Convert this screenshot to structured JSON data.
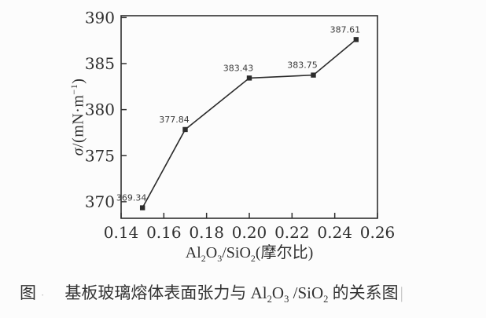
{
  "colors": {
    "ink": "#2f2f2f",
    "line": "#2b2b2b",
    "background": "#fcfcfc"
  },
  "chart_data": {
    "type": "line",
    "title": "",
    "xlabel": "Al~2~O~3~/SiO~2~(摩尔比)",
    "ylabel": "*σ*/(mN·m^−1^)",
    "x": [
      0.15,
      0.17,
      0.2,
      0.23,
      0.25
    ],
    "y": [
      369.34,
      377.84,
      383.43,
      383.75,
      387.61
    ],
    "point_labels": [
      "369.34",
      "377.84",
      "383.43",
      "383.75",
      "387.61"
    ],
    "xlim": [
      0.14,
      0.26
    ],
    "ylim": [
      368.2,
      390.2
    ],
    "xticks": [
      0.14,
      0.16,
      0.18,
      0.2,
      0.22,
      0.24,
      0.26
    ],
    "xtick_labels": [
      "0.14",
      "0.16",
      "0.18",
      "0.20",
      "0.22",
      "0.24",
      "0.26"
    ],
    "yticks": [
      370,
      375,
      380,
      385,
      390
    ],
    "ytick_labels": [
      "370",
      "375",
      "380",
      "385",
      "390"
    ],
    "grid": false,
    "legend": "none",
    "marker": "filled-square",
    "line_color": "#2b2b2b"
  },
  "caption": {
    "prefix": "图",
    "faint_mark": "·",
    "text": "基板玻璃熔体表面张力与 Al~2~O~3~ /SiO~2~ 的关系图",
    "tail_mark": "|"
  }
}
